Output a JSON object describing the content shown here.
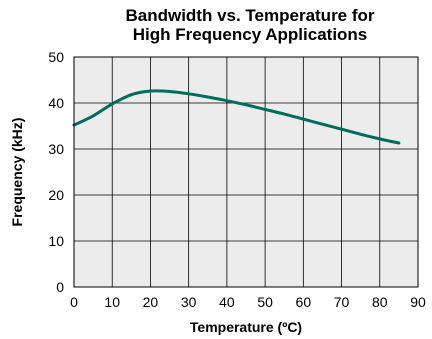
{
  "chart_data": {
    "type": "line",
    "title_lines": [
      "Bandwidth vs. Temperature for",
      "High Frequency Applications"
    ],
    "xlabel": "Temperature (ºC)",
    "ylabel": "Frequency (kHz)",
    "xlim": [
      0,
      90
    ],
    "ylim": [
      0,
      50
    ],
    "xticks": [
      0,
      10,
      20,
      30,
      40,
      50,
      60,
      70,
      80,
      90
    ],
    "yticks": [
      0,
      10,
      20,
      30,
      40,
      50
    ],
    "grid": true,
    "series": [
      {
        "color": "#006B5E",
        "x": [
          0,
          5,
          10,
          15,
          20,
          25,
          30,
          35,
          40,
          45,
          50,
          55,
          60,
          65,
          70,
          75,
          80,
          85
        ],
        "y": [
          35.2,
          37.2,
          39.8,
          41.8,
          42.6,
          42.5,
          42.0,
          41.3,
          40.5,
          39.6,
          38.6,
          37.6,
          36.5,
          35.4,
          34.3,
          33.2,
          32.2,
          31.3
        ]
      }
    ],
    "plot_background": "#ececec"
  }
}
